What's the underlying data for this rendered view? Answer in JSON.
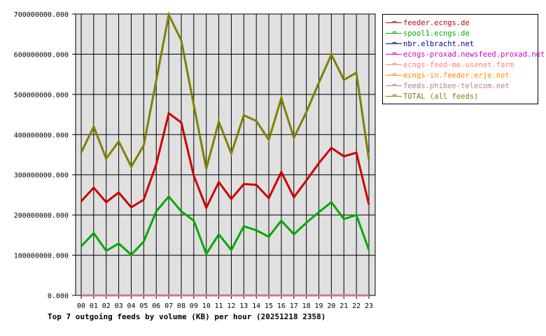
{
  "chart_data": {
    "type": "line",
    "title": "Top 7 outgoing feeds by volume (KB) per hour (20251218 2358)",
    "xlabel": "",
    "ylabel": "",
    "ylim": [
      0,
      700000000
    ],
    "yticks": [
      "0.000",
      "100000000.000",
      "200000000.000",
      "300000000.000",
      "400000000.000",
      "500000000.000",
      "600000000.000",
      "700000000.000"
    ],
    "categories": [
      "00",
      "01",
      "02",
      "03",
      "04",
      "05",
      "06",
      "07",
      "08",
      "09",
      "10",
      "11",
      "12",
      "13",
      "14",
      "15",
      "16",
      "17",
      "18",
      "19",
      "20",
      "21",
      "22",
      "23"
    ],
    "grid": true,
    "legend_position": "right",
    "series": [
      {
        "name": "feeder.ecngs.de",
        "color": "#cc0000",
        "values": [
          234000000,
          268000000,
          232000000,
          256000000,
          219000000,
          238000000,
          326000000,
          453000000,
          430000000,
          298000000,
          218000000,
          282000000,
          240000000,
          277000000,
          275000000,
          242000000,
          307000000,
          244000000,
          286000000,
          329000000,
          367000000,
          346000000,
          355000000,
          226000000
        ]
      },
      {
        "name": "spool1.ecngs.de",
        "color": "#00aa00",
        "values": [
          122000000,
          155000000,
          111000000,
          129000000,
          101000000,
          134000000,
          209000000,
          246000000,
          209000000,
          186000000,
          103000000,
          152000000,
          113000000,
          172000000,
          162000000,
          146000000,
          186000000,
          152000000,
          181000000,
          207000000,
          232000000,
          190000000,
          200000000,
          113000000
        ]
      },
      {
        "name": "nbr.elbracht.net",
        "color": "#0000aa",
        "values": [
          0,
          0,
          0,
          0,
          0,
          0,
          0,
          0,
          0,
          0,
          0,
          0,
          0,
          0,
          0,
          0,
          0,
          0,
          0,
          0,
          0,
          0,
          0,
          0
        ]
      },
      {
        "name": "ecngs-proxad.newsfeed.proxad.net",
        "color": "#cc00cc",
        "values": [
          0,
          0,
          0,
          0,
          0,
          0,
          0,
          0,
          0,
          0,
          0,
          0,
          0,
          0,
          0,
          0,
          0,
          0,
          0,
          0,
          0,
          0,
          0,
          0
        ]
      },
      {
        "name": "ecngs-feed-me.usenet.farm",
        "color": "#ff8080",
        "values": [
          0,
          0,
          0,
          0,
          0,
          0,
          0,
          0,
          0,
          0,
          0,
          0,
          0,
          0,
          0,
          0,
          0,
          0,
          0,
          0,
          0,
          0,
          0,
          0
        ]
      },
      {
        "name": "ecngs-in.feeder.erje.net",
        "color": "#ff8800",
        "values": [
          0,
          0,
          0,
          0,
          0,
          0,
          0,
          0,
          0,
          0,
          0,
          0,
          0,
          0,
          0,
          0,
          0,
          0,
          0,
          0,
          0,
          0,
          0,
          0
        ]
      },
      {
        "name": "feeds.phibee-telecom.net",
        "color": "#c08080",
        "values": [
          0,
          0,
          0,
          0,
          0,
          0,
          0,
          0,
          0,
          0,
          0,
          0,
          0,
          0,
          0,
          0,
          0,
          0,
          0,
          0,
          0,
          0,
          0,
          0
        ]
      },
      {
        "name": "TOTAL (all feeds)",
        "color": "#808000",
        "values": [
          355000000,
          420000000,
          340000000,
          383000000,
          320000000,
          373000000,
          535000000,
          698000000,
          634000000,
          474000000,
          315000000,
          432000000,
          353000000,
          448000000,
          434000000,
          387000000,
          491000000,
          392000000,
          456000000,
          529000000,
          599000000,
          536000000,
          554000000,
          338000000
        ]
      }
    ]
  },
  "legend": {
    "items": [
      {
        "label": "feeder.ecngs.de",
        "color": "#cc0000"
      },
      {
        "label": "spool1.ecngs.de",
        "color": "#00aa00"
      },
      {
        "label": "nbr.elbracht.net",
        "color": "#0000aa"
      },
      {
        "label": "ecngs-proxad.newsfeed.proxad.net",
        "color": "#cc00cc"
      },
      {
        "label": "ecngs-feed-me.usenet.farm",
        "color": "#ff8080"
      },
      {
        "label": "ecngs-in.feeder.erje.net",
        "color": "#ff8800"
      },
      {
        "label": "feeds.phibee-telecom.net",
        "color": "#c08080"
      },
      {
        "label": "TOTAL (all feeds)",
        "color": "#808000"
      }
    ]
  },
  "colors": {
    "plot_background": "#e0e0e0",
    "grid": "#000000",
    "page_background": "#ffffff"
  }
}
